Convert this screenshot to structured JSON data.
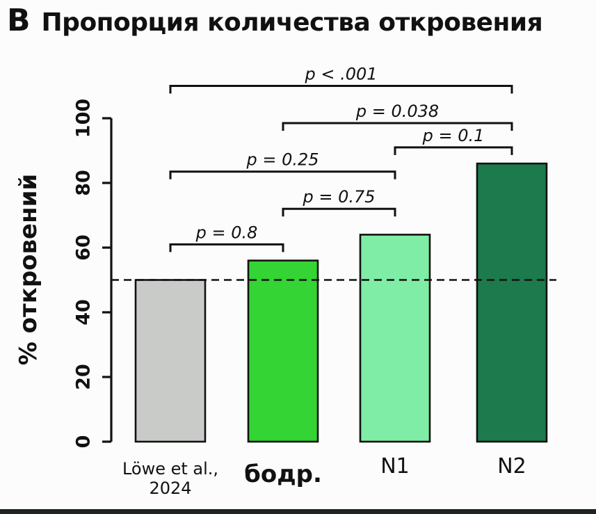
{
  "title": {
    "prefix": "B",
    "text": "Пропорция количества откровения"
  },
  "chart_data": {
    "type": "bar",
    "title": "Пропорция количества откровения",
    "xlabel": "",
    "ylabel": "% откровений",
    "ylim": [
      0,
      100
    ],
    "yticks": [
      0,
      20,
      40,
      60,
      80,
      100
    ],
    "dashed_reference_line": 50,
    "grid": false,
    "categories": [
      {
        "label_lines": [
          "Löwe et al.,",
          "2024"
        ],
        "style": "small"
      },
      {
        "label_lines": [
          "бодр."
        ],
        "style": "bold"
      },
      {
        "label_lines": [
          "N1"
        ],
        "style": "plain"
      },
      {
        "label_lines": [
          "N2"
        ],
        "style": "plain"
      }
    ],
    "values": [
      50,
      56,
      64,
      86
    ],
    "bar_colors": [
      "#c9cbc9",
      "#33d433",
      "#7feda5",
      "#1c7a4c"
    ],
    "bar_border_color": "#111111",
    "significance_brackets": [
      {
        "from": 0,
        "to": 1,
        "label": "p = 0.8",
        "height": 61
      },
      {
        "from": 1,
        "to": 2,
        "label": "p = 0.75",
        "height": 72
      },
      {
        "from": 0,
        "to": 2,
        "label": "p = 0.25",
        "height": 83.5
      },
      {
        "from": 2,
        "to": 3,
        "label": "p = 0.1",
        "height": 91
      },
      {
        "from": 1,
        "to": 3,
        "label": "p = 0.038",
        "height": 98.5
      },
      {
        "from": 0,
        "to": 3,
        "label": "p < .001",
        "height": 110
      }
    ]
  }
}
